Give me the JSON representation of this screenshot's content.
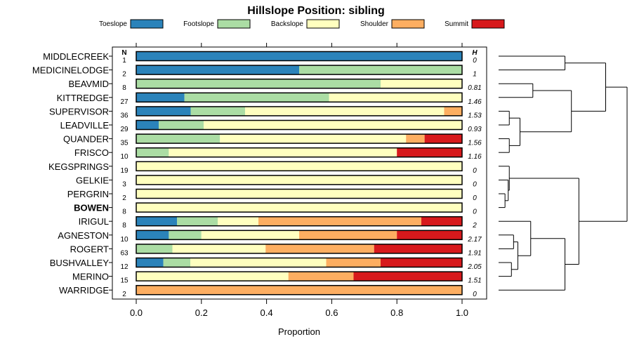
{
  "chart_data": {
    "type": "bar",
    "orientation": "horizontal",
    "stacked": true,
    "title": "Hillslope Position: sibling",
    "xlabel": "Proportion",
    "ylabel": "",
    "xlim": [
      0,
      1
    ],
    "x_ticks": [
      "0.0",
      "0.2",
      "0.4",
      "0.6",
      "0.8",
      "1.0"
    ],
    "n_header": "N",
    "h_header": "H",
    "legend": [
      {
        "name": "Toeslope",
        "color": "#2b83ba"
      },
      {
        "name": "Footslope",
        "color": "#abdda4"
      },
      {
        "name": "Backslope",
        "color": "#ffffbf"
      },
      {
        "name": "Shoulder",
        "color": "#fdae61"
      },
      {
        "name": "Summit",
        "color": "#d7191c"
      }
    ],
    "rows": [
      {
        "label": "MIDDLECREEK",
        "n": "1",
        "h": "0",
        "bold": false,
        "values": [
          1,
          0,
          0,
          0,
          0
        ]
      },
      {
        "label": "MEDICINELODGE",
        "n": "2",
        "h": "1",
        "bold": false,
        "values": [
          0.5,
          0.5,
          0,
          0,
          0
        ]
      },
      {
        "label": "BEAVMID",
        "n": "8",
        "h": "0.81",
        "bold": false,
        "values": [
          0,
          0.75,
          0.25,
          0,
          0
        ]
      },
      {
        "label": "KITTREDGE",
        "n": "27",
        "h": "1.46",
        "bold": false,
        "values": [
          0.148,
          0.444,
          0.408,
          0,
          0
        ]
      },
      {
        "label": "SUPERVISOR",
        "n": "36",
        "h": "1.53",
        "bold": false,
        "values": [
          0.167,
          0.167,
          0.611,
          0.055,
          0
        ]
      },
      {
        "label": "LEADVILLE",
        "n": "29",
        "h": "0.93",
        "bold": false,
        "values": [
          0.069,
          0.138,
          0.793,
          0,
          0
        ]
      },
      {
        "label": "QUANDER",
        "n": "35",
        "h": "1.56",
        "bold": false,
        "values": [
          0,
          0.257,
          0.571,
          0.057,
          0.115
        ]
      },
      {
        "label": "FRISCO",
        "n": "10",
        "h": "1.16",
        "bold": false,
        "values": [
          0,
          0.1,
          0.7,
          0,
          0.2
        ]
      },
      {
        "label": "KEGSPRINGS",
        "n": "19",
        "h": "0",
        "bold": false,
        "values": [
          0,
          0,
          1,
          0,
          0
        ]
      },
      {
        "label": "GELKIE",
        "n": "3",
        "h": "0",
        "bold": false,
        "values": [
          0,
          0,
          1,
          0,
          0
        ]
      },
      {
        "label": "PERGRIN",
        "n": "2",
        "h": "0",
        "bold": false,
        "values": [
          0,
          0,
          1,
          0,
          0
        ]
      },
      {
        "label": "BOWEN",
        "n": "8",
        "h": "0",
        "bold": true,
        "values": [
          0,
          0,
          1,
          0,
          0
        ]
      },
      {
        "label": "IRIGUL",
        "n": "8",
        "h": "2",
        "bold": false,
        "values": [
          0.125,
          0.125,
          0.125,
          0.5,
          0.125
        ]
      },
      {
        "label": "AGNESTON",
        "n": "10",
        "h": "2.17",
        "bold": false,
        "values": [
          0.1,
          0.1,
          0.3,
          0.3,
          0.2
        ]
      },
      {
        "label": "ROGERT",
        "n": "63",
        "h": "1.91",
        "bold": false,
        "values": [
          0,
          0.111,
          0.286,
          0.333,
          0.27
        ]
      },
      {
        "label": "BUSHVALLEY",
        "n": "12",
        "h": "2.05",
        "bold": false,
        "values": [
          0.083,
          0.083,
          0.417,
          0.167,
          0.25
        ]
      },
      {
        "label": "MERINO",
        "n": "15",
        "h": "1.51",
        "bold": false,
        "values": [
          0,
          0,
          0.467,
          0.2,
          0.333
        ]
      },
      {
        "label": "WARRIDGE",
        "n": "2",
        "h": "0",
        "bold": false,
        "values": [
          0,
          0,
          0,
          1,
          0
        ]
      }
    ],
    "dendrogram": {
      "merges": [
        {
          "a": "r0",
          "b": "r1",
          "height": 0.62
        },
        {
          "a": "r2",
          "b": "r3",
          "height": 0.32
        },
        {
          "a": "r4",
          "b": "r5",
          "height": 0.1
        },
        {
          "a": "r6",
          "b": "r7",
          "height": 0.1
        },
        {
          "a": "m2",
          "b": "m3",
          "height": 0.2
        },
        {
          "a": "m1",
          "b": "m4",
          "height": 0.68
        },
        {
          "a": "m0",
          "b": "m5",
          "height": 1.0
        },
        {
          "a": "r10",
          "b": "r11",
          "height": 0.06
        },
        {
          "a": "r9",
          "b": "m7",
          "height": 0.09
        },
        {
          "a": "r8",
          "b": "m8",
          "height": 0.1
        },
        {
          "a": "r13",
          "b": "r14",
          "height": 0.14
        },
        {
          "a": "r15",
          "b": "r16",
          "height": 0.12
        },
        {
          "a": "m10",
          "b": "m11",
          "height": 0.18
        },
        {
          "a": "r12",
          "b": "m12",
          "height": 0.3
        },
        {
          "a": "m13",
          "b": "r17",
          "height": 0.62
        },
        {
          "a": "m9",
          "b": "m14",
          "height": 0.75
        },
        {
          "a": "m6",
          "b": "m15",
          "height": 1.2
        }
      ],
      "max_height": 1.2
    }
  }
}
